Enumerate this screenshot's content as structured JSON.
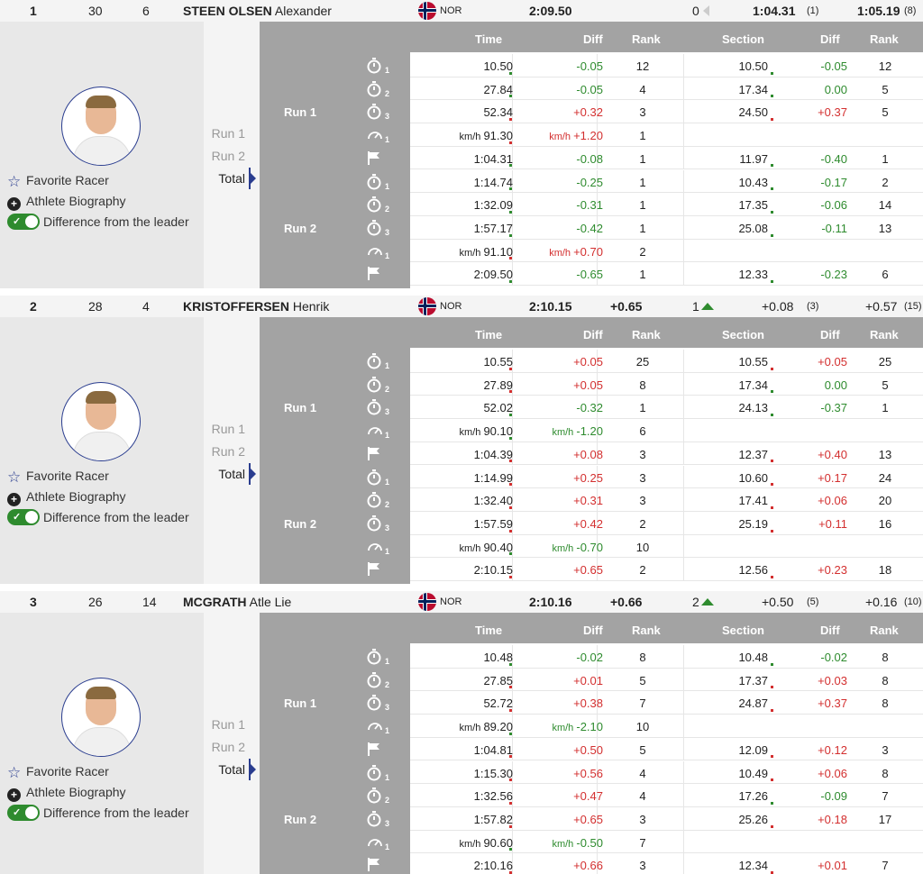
{
  "columns": {
    "time": "Time",
    "diff": "Diff",
    "rank": "Rank",
    "section": "Section",
    "sdiff": "Diff",
    "srank": "Rank"
  },
  "labels": {
    "run1": "Run 1",
    "run2": "Run 2",
    "total": "Total",
    "kmh": "km/h"
  },
  "links": {
    "favorite": "Favorite Racer",
    "bio": "Athlete Biography",
    "diff_leader": "Difference from the leader"
  },
  "athletes": [
    {
      "rank": "1",
      "bib": "30",
      "fis_pts": "6",
      "surname": "STEEN OLSEN",
      "firstname": "Alexander",
      "nation": "NOR",
      "total": "2:09.50",
      "gap": "",
      "run1_rank_change": "0",
      "rank_change_trend": "none",
      "run1_time": "1:04.31",
      "run1_rank": "(1)",
      "run2_time": "1:05.19",
      "run2_rank": "(8)",
      "rows": [
        {
          "t": "10.50",
          "d": "-0.05",
          "r": "12",
          "s": "10.50",
          "sd": "-0.05",
          "sr": "12"
        },
        {
          "t": "27.84",
          "d": "-0.05",
          "r": "4",
          "s": "17.34",
          "sd": "0.00",
          "sr": "5"
        },
        {
          "t": "52.34",
          "d": "+0.32",
          "r": "3",
          "s": "24.50",
          "sd": "+0.37",
          "sr": "5"
        },
        {
          "t": "91.30",
          "d": "+1.20",
          "r": "1",
          "s": "",
          "sd": "",
          "sr": "",
          "speed": true
        },
        {
          "t": "1:04.31",
          "d": "-0.08",
          "r": "1",
          "s": "11.97",
          "sd": "-0.40",
          "sr": "1"
        },
        {
          "t": "1:14.74",
          "d": "-0.25",
          "r": "1",
          "s": "10.43",
          "sd": "-0.17",
          "sr": "2"
        },
        {
          "t": "1:32.09",
          "d": "-0.31",
          "r": "1",
          "s": "17.35",
          "sd": "-0.06",
          "sr": "14"
        },
        {
          "t": "1:57.17",
          "d": "-0.42",
          "r": "1",
          "s": "25.08",
          "sd": "-0.11",
          "sr": "13"
        },
        {
          "t": "91.10",
          "d": "+0.70",
          "r": "2",
          "s": "",
          "sd": "",
          "sr": "",
          "speed": true
        },
        {
          "t": "2:09.50",
          "d": "-0.65",
          "r": "1",
          "s": "12.33",
          "sd": "-0.23",
          "sr": "6"
        }
      ]
    },
    {
      "rank": "2",
      "bib": "28",
      "fis_pts": "4",
      "surname": "KRISTOFFERSEN",
      "firstname": "Henrik",
      "nation": "NOR",
      "total": "2:10.15",
      "gap": "+0.65",
      "run1_rank_change": "1",
      "rank_change_trend": "up",
      "run1_time": "+0.08",
      "run1_rank": "(3)",
      "run2_time": "+0.57",
      "run2_rank": "(15)",
      "rows": [
        {
          "t": "10.55",
          "d": "+0.05",
          "r": "25",
          "s": "10.55",
          "sd": "+0.05",
          "sr": "25"
        },
        {
          "t": "27.89",
          "d": "+0.05",
          "r": "8",
          "s": "17.34",
          "sd": "0.00",
          "sr": "5"
        },
        {
          "t": "52.02",
          "d": "-0.32",
          "r": "1",
          "s": "24.13",
          "sd": "-0.37",
          "sr": "1"
        },
        {
          "t": "90.10",
          "d": "-1.20",
          "r": "6",
          "s": "",
          "sd": "",
          "sr": "",
          "speed": true
        },
        {
          "t": "1:04.39",
          "d": "+0.08",
          "r": "3",
          "s": "12.37",
          "sd": "+0.40",
          "sr": "13"
        },
        {
          "t": "1:14.99",
          "d": "+0.25",
          "r": "3",
          "s": "10.60",
          "sd": "+0.17",
          "sr": "24"
        },
        {
          "t": "1:32.40",
          "d": "+0.31",
          "r": "3",
          "s": "17.41",
          "sd": "+0.06",
          "sr": "20"
        },
        {
          "t": "1:57.59",
          "d": "+0.42",
          "r": "2",
          "s": "25.19",
          "sd": "+0.11",
          "sr": "16"
        },
        {
          "t": "90.40",
          "d": "-0.70",
          "r": "10",
          "s": "",
          "sd": "",
          "sr": "",
          "speed": true
        },
        {
          "t": "2:10.15",
          "d": "+0.65",
          "r": "2",
          "s": "12.56",
          "sd": "+0.23",
          "sr": "18"
        }
      ]
    },
    {
      "rank": "3",
      "bib": "26",
      "fis_pts": "14",
      "surname": "MCGRATH",
      "firstname": "Atle Lie",
      "nation": "NOR",
      "total": "2:10.16",
      "gap": "+0.66",
      "run1_rank_change": "2",
      "rank_change_trend": "up",
      "run1_time": "+0.50",
      "run1_rank": "(5)",
      "run2_time": "+0.16",
      "run2_rank": "(10)",
      "rows": [
        {
          "t": "10.48",
          "d": "-0.02",
          "r": "8",
          "s": "10.48",
          "sd": "-0.02",
          "sr": "8"
        },
        {
          "t": "27.85",
          "d": "+0.01",
          "r": "5",
          "s": "17.37",
          "sd": "+0.03",
          "sr": "8"
        },
        {
          "t": "52.72",
          "d": "+0.38",
          "r": "7",
          "s": "24.87",
          "sd": "+0.37",
          "sr": "8"
        },
        {
          "t": "89.20",
          "d": "-2.10",
          "r": "10",
          "s": "",
          "sd": "",
          "sr": "",
          "speed": true
        },
        {
          "t": "1:04.81",
          "d": "+0.50",
          "r": "5",
          "s": "12.09",
          "sd": "+0.12",
          "sr": "3"
        },
        {
          "t": "1:15.30",
          "d": "+0.56",
          "r": "4",
          "s": "10.49",
          "sd": "+0.06",
          "sr": "8"
        },
        {
          "t": "1:32.56",
          "d": "+0.47",
          "r": "4",
          "s": "17.26",
          "sd": "-0.09",
          "sr": "7"
        },
        {
          "t": "1:57.82",
          "d": "+0.65",
          "r": "3",
          "s": "25.26",
          "sd": "+0.18",
          "sr": "17"
        },
        {
          "t": "90.60",
          "d": "-0.50",
          "r": "7",
          "s": "",
          "sd": "",
          "sr": "",
          "speed": true
        },
        {
          "t": "2:10.16",
          "d": "+0.66",
          "r": "3",
          "s": "12.34",
          "sd": "+0.01",
          "sr": "7"
        }
      ]
    }
  ],
  "row_icons": [
    "stopwatch-1-icon",
    "stopwatch-2-icon",
    "stopwatch-3-icon",
    "speed-1-icon",
    "finish-flag-icon",
    "stopwatch-1-icon",
    "stopwatch-2-icon",
    "stopwatch-3-icon",
    "speed-1-icon",
    "finish-flag-icon"
  ],
  "colors": {
    "positive": "#d32f2f",
    "negative": "#2e8b2e",
    "header_gray": "#a3a3a3",
    "accent": "#2a3d8f"
  }
}
